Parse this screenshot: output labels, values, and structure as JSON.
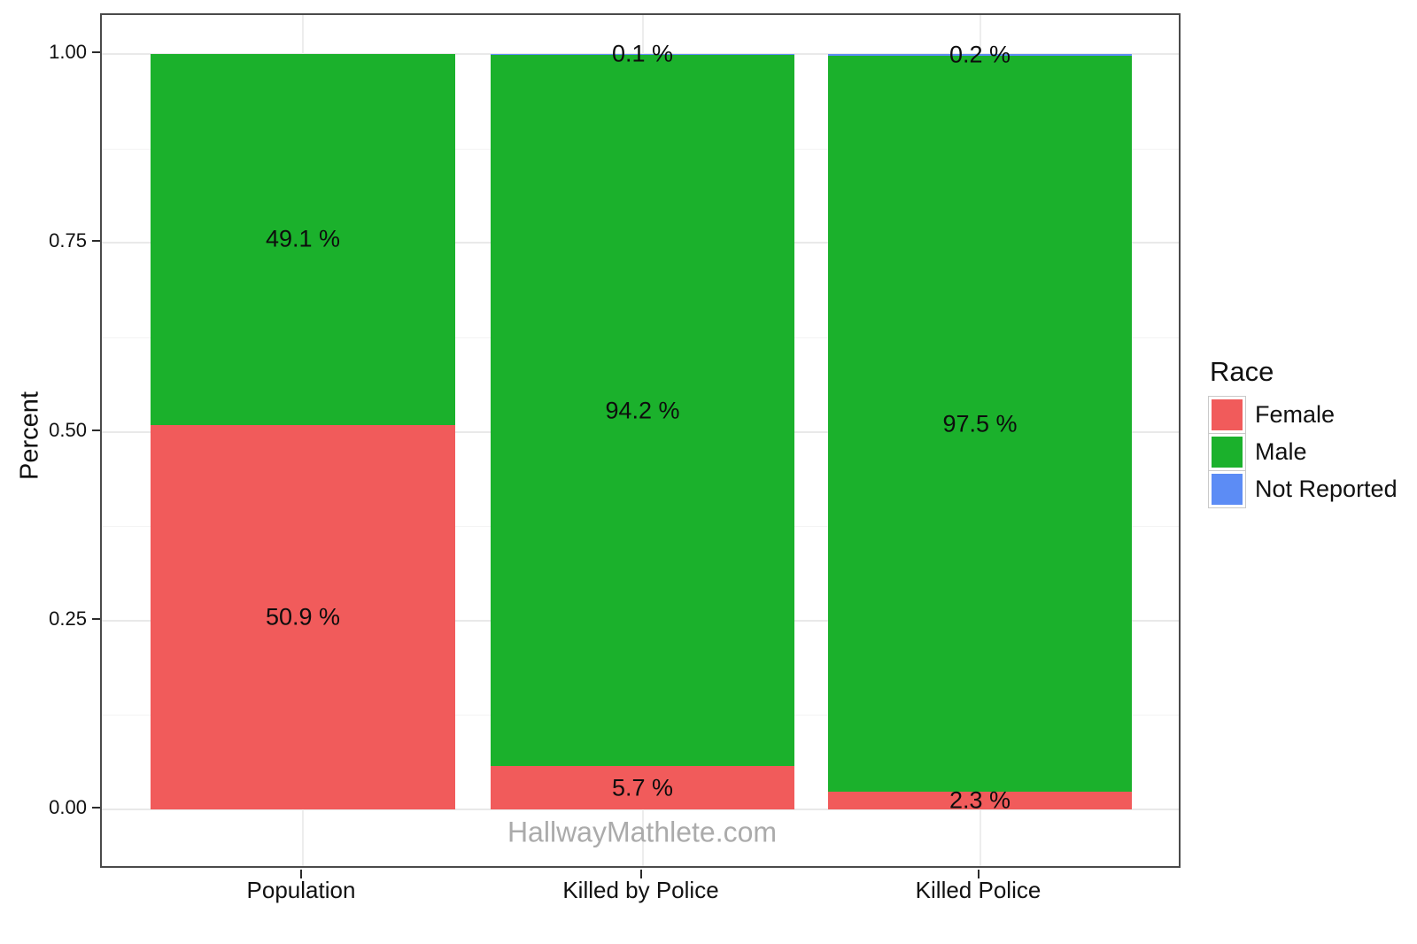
{
  "figure": {
    "background": "#ffffff",
    "watermark": "HallwayMathlete.com"
  },
  "axes": {
    "y_title": "Percent",
    "y_tick_labels": [
      "0.00",
      "0.25",
      "0.50",
      "0.75",
      "1.00"
    ],
    "y_tick_values": [
      0,
      0.25,
      0.5,
      0.75,
      1.0
    ],
    "x_tick_labels": [
      "Population",
      "Killed by Police",
      "Killed Police"
    ]
  },
  "legend": {
    "title": "Race",
    "items": [
      {
        "label": "Female",
        "color": "#F15B5B"
      },
      {
        "label": "Male",
        "color": "#1BB12C"
      },
      {
        "label": "Not Reported",
        "color": "#5C8CF5"
      }
    ]
  },
  "colors": {
    "panel_border": "#4a4a4a",
    "grid_major": "#e9e9e9",
    "grid_minor": "#f4f4f4",
    "tick_mark": "#2b2b2b",
    "watermark_text": "#ababab"
  },
  "chart_data": {
    "type": "bar",
    "subtype": "stacked_percent",
    "title": "",
    "xlabel": "",
    "ylabel": "Percent",
    "ylim": [
      0,
      1
    ],
    "grid": true,
    "legend_position": "right",
    "legend_title": "Race",
    "categories": [
      "Population",
      "Killed by Police",
      "Killed Police"
    ],
    "series": [
      {
        "name": "Female",
        "color": "#F15B5B",
        "values": [
          0.509,
          0.057,
          0.023
        ],
        "labels": [
          "50.9 %",
          "5.7 %",
          "2.3 %"
        ]
      },
      {
        "name": "Male",
        "color": "#1BB12C",
        "values": [
          0.491,
          0.942,
          0.975
        ],
        "labels": [
          "49.1 %",
          "94.2 %",
          "97.5 %"
        ]
      },
      {
        "name": "Not Reported",
        "color": "#5C8CF5",
        "values": [
          0.0,
          0.001,
          0.002
        ],
        "labels": [
          null,
          "0.1 %",
          "0.2 %"
        ]
      }
    ],
    "watermark": "HallwayMathlete.com"
  }
}
